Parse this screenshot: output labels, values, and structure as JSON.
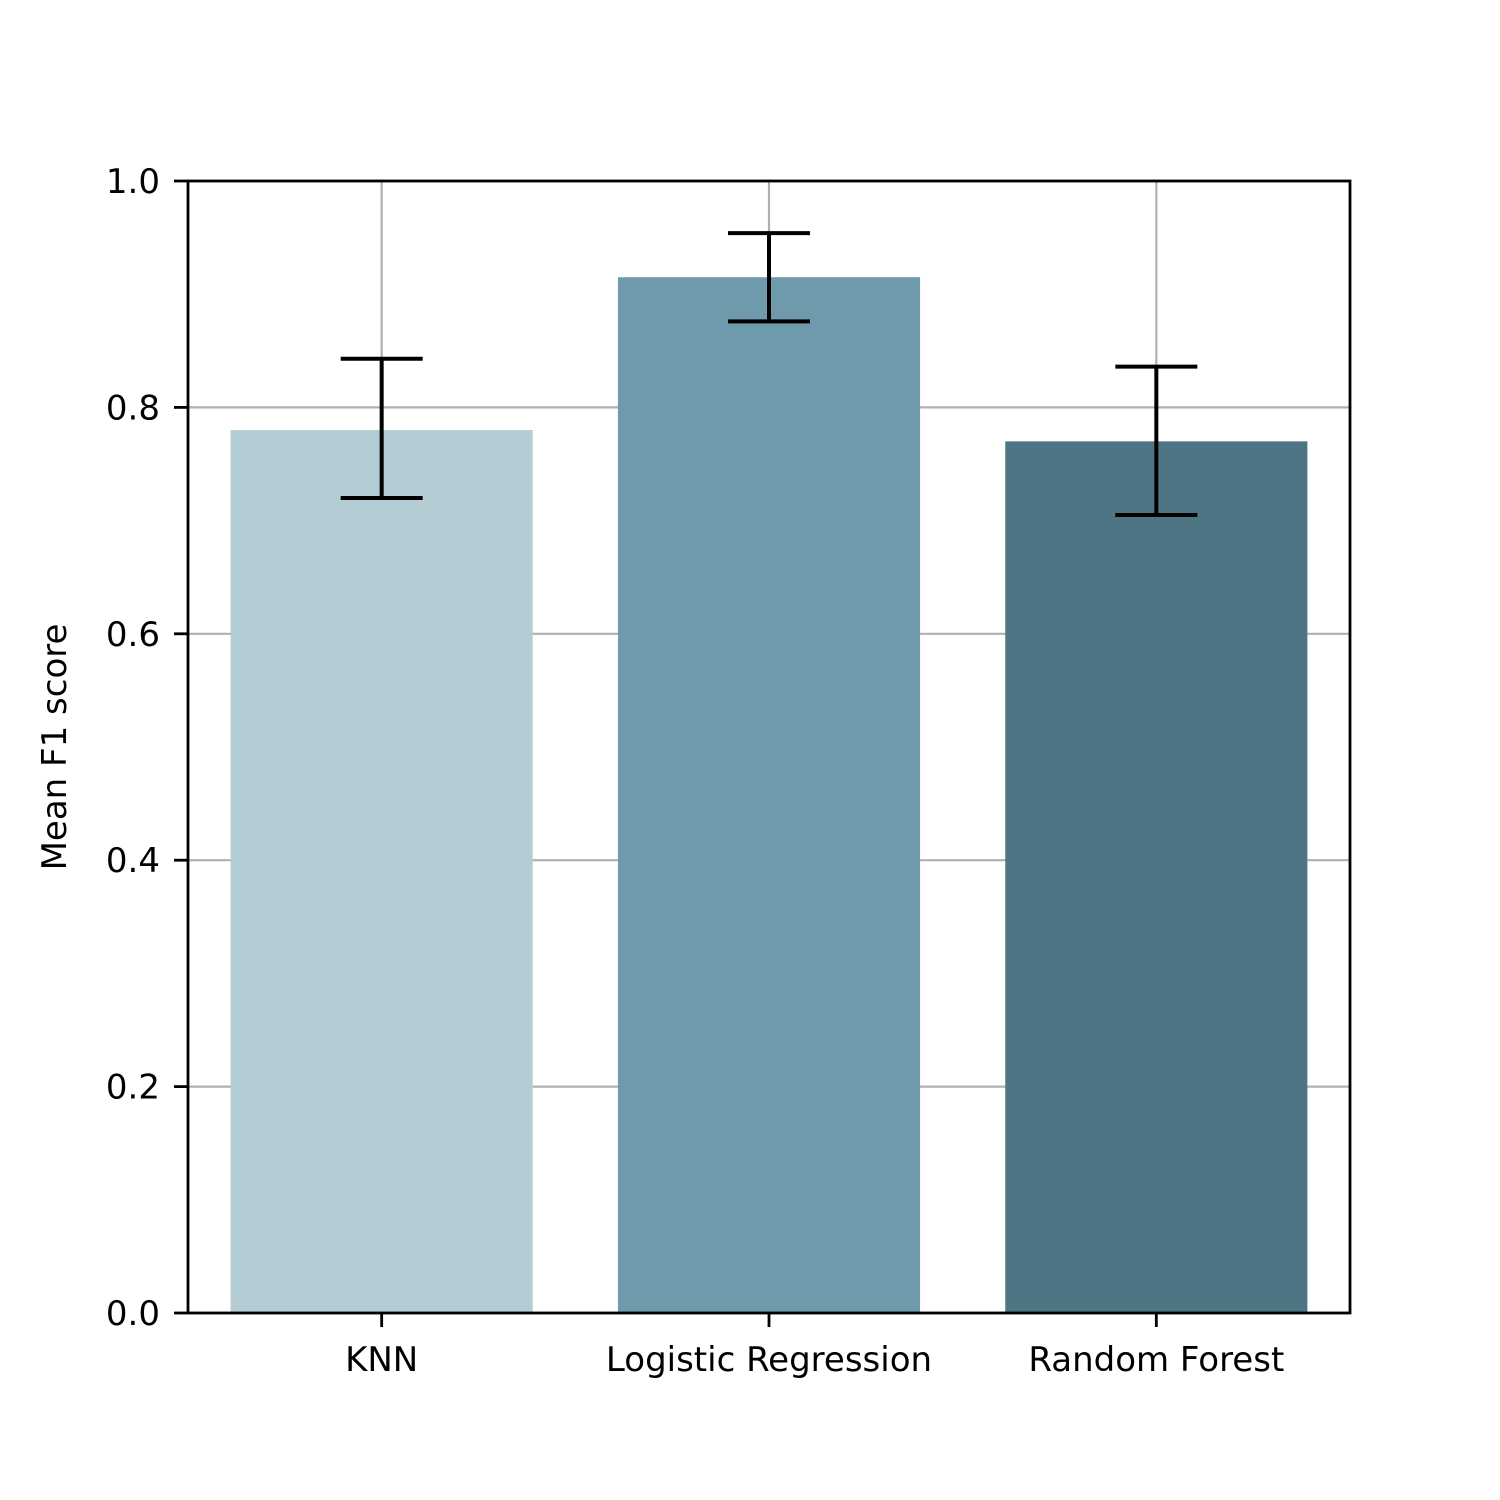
{
  "chart_data": {
    "type": "bar",
    "title": "",
    "xlabel": "",
    "ylabel": "Mean F1 score",
    "categories": [
      "KNN",
      "Logistic Regression",
      "Random Forest"
    ],
    "values": [
      0.78,
      0.915,
      0.77
    ],
    "error_low": [
      0.72,
      0.876,
      0.705
    ],
    "error_high": [
      0.843,
      0.954,
      0.836
    ],
    "bar_colors": [
      "#b4ccd3",
      "#6e9aab",
      "#4d7583"
    ],
    "ylim": [
      0,
      1.0
    ],
    "yticks": [
      "0.0",
      "0.2",
      "0.4",
      "0.6",
      "0.8",
      "1.0"
    ],
    "grid": true,
    "grid_color": "#b0b0b0",
    "legend": "none"
  }
}
